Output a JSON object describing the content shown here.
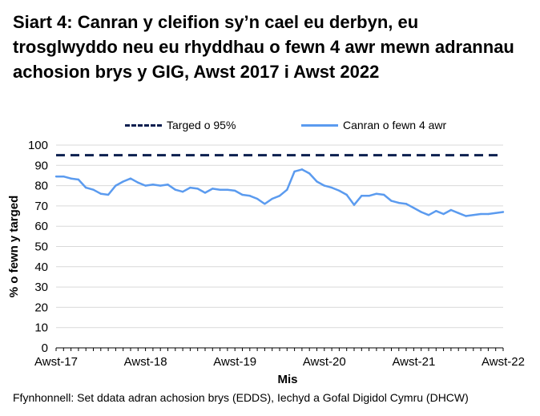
{
  "title": "Siart 4: Canran y cleifion sy’n cael eu derbyn, eu trosglwyddo neu eu rhyddhau o fewn 4 awr mewn adrannau achosion brys y GIG, Awst 2017 i Awst 2022",
  "source": "Ffynhonnell: Set ddata adran achosion brys (EDDS), Iechyd a Gofal Digidol Cymru (DHCW)",
  "colors": {
    "target": "#0a1f4f",
    "series": "#5b9bef",
    "grid": "#d9d9d9"
  },
  "chart_data": {
    "type": "line",
    "xlabel": "Mis",
    "ylabel": "% o fewn y targed",
    "ylim": [
      0,
      100
    ],
    "yticks": [
      0,
      10,
      20,
      30,
      40,
      50,
      60,
      70,
      80,
      90,
      100
    ],
    "xticks": [
      "Awst-17",
      "Awst-18",
      "Awst-19",
      "Awst-20",
      "Awst-21",
      "Awst-22"
    ],
    "grid": true,
    "legend_position": "top",
    "series": [
      {
        "name": "Targed o 95%",
        "style": "dashed",
        "values": [
          95,
          95
        ]
      },
      {
        "name": "Canran o fewn 4 awr",
        "style": "solid",
        "values": [
          84.5,
          84.5,
          83.5,
          83.0,
          79.0,
          78.0,
          76.0,
          75.5,
          80.0,
          82.0,
          83.5,
          81.5,
          80.0,
          80.5,
          80.0,
          80.5,
          78.0,
          77.0,
          79.0,
          78.5,
          76.5,
          78.5,
          78.0,
          78.0,
          77.5,
          75.5,
          75.0,
          73.5,
          71.0,
          73.5,
          75.0,
          78.0,
          87.0,
          88.0,
          86.0,
          82.0,
          80.0,
          79.0,
          77.5,
          75.5,
          70.5,
          75.0,
          75.0,
          76.0,
          75.5,
          72.5,
          71.5,
          71.0,
          69.0,
          67.0,
          65.5,
          67.5,
          66.0,
          68.0,
          66.5,
          65.0,
          65.5,
          66.0,
          66.0,
          66.5,
          67.0
        ]
      }
    ]
  }
}
